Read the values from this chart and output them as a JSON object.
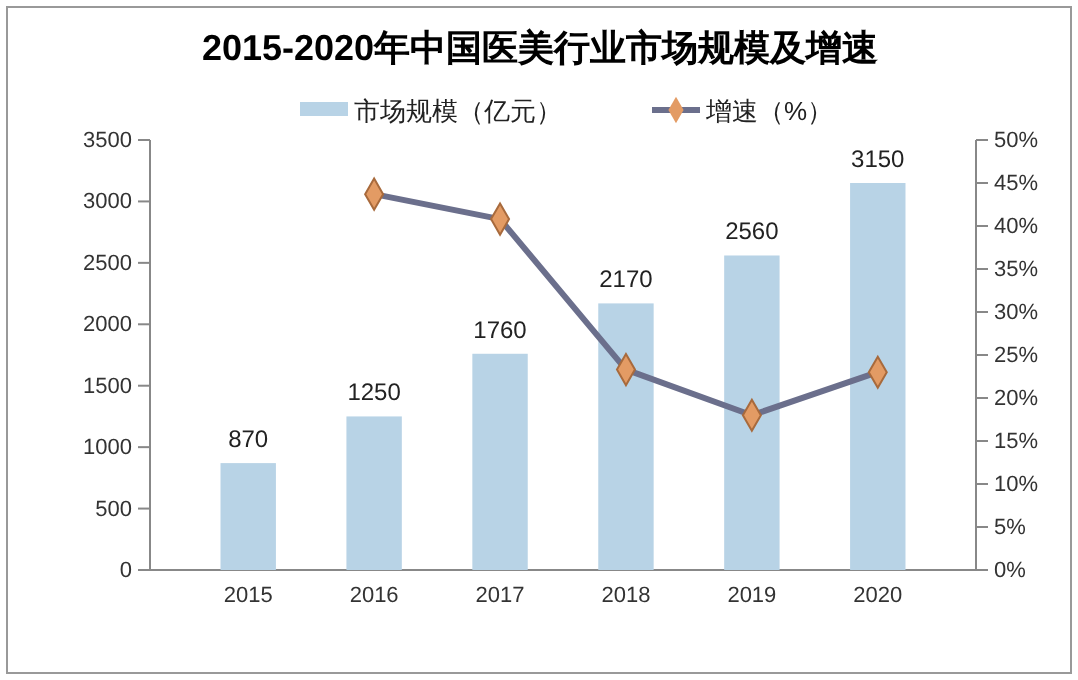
{
  "chart_data": {
    "type": "bar",
    "title": "2015-2020年中国医美行业市场规模及增速",
    "categories": [
      "2015",
      "2016",
      "2017",
      "2018",
      "2019",
      "2020"
    ],
    "series": [
      {
        "name": "市场规模（亿元）",
        "color": "#b8d3e6",
        "values": [
          870,
          1250,
          1760,
          2170,
          2560,
          3150
        ],
        "value_labels": [
          "870",
          "1250",
          "1760",
          "2170",
          "2560",
          "3150"
        ]
      },
      {
        "name": "增速（%）",
        "type": "line",
        "axis": "y2",
        "color": "#6b6f8c",
        "values": [
          null,
          43.7,
          40.8,
          23.3,
          18.0,
          23.0
        ]
      }
    ],
    "ylim": [
      0,
      3500
    ],
    "yticks": [
      0,
      500,
      1000,
      1500,
      2000,
      2500,
      3000,
      3500
    ],
    "y2lim": [
      0,
      50
    ],
    "y2ticks": [
      {
        "value": 0,
        "label": "0%"
      },
      {
        "value": 5,
        "label": "5%"
      },
      {
        "value": 10,
        "label": "10%"
      },
      {
        "value": 15,
        "label": "15%"
      },
      {
        "value": 20,
        "label": "20%"
      },
      {
        "value": 25,
        "label": "25%"
      },
      {
        "value": 30,
        "label": "30%"
      },
      {
        "value": 35,
        "label": "35%"
      },
      {
        "value": 40,
        "label": "40%"
      },
      {
        "value": 45,
        "label": "45%"
      },
      {
        "value": 50,
        "label": "50%"
      }
    ],
    "marker": "diamond",
    "line_style": "solid",
    "grid": false,
    "legend": "top"
  }
}
